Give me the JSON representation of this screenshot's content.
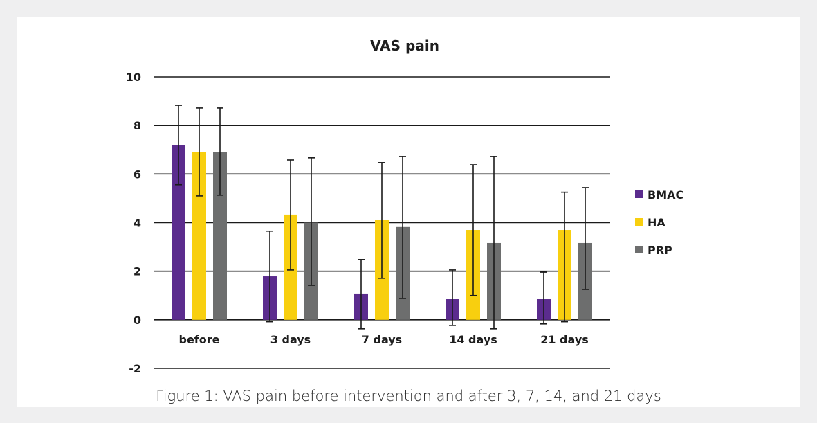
{
  "chart_data": {
    "type": "bar",
    "title": "VAS pain",
    "xlabel": "",
    "ylabel": "",
    "ylim": [
      -2,
      10
    ],
    "yticks": [
      -2,
      0,
      2,
      4,
      6,
      8,
      10
    ],
    "grid": true,
    "legend_position": "right",
    "categories": [
      "before",
      "3 days",
      "7 days",
      "14 days",
      "21 days"
    ],
    "series": [
      {
        "name": "BMAC",
        "color": "#5b2c8e",
        "values": [
          7.18,
          1.79,
          1.08,
          0.85,
          0.85
        ],
        "error_upper": [
          8.83,
          3.65,
          2.48,
          2.05,
          1.96
        ],
        "error_lower": [
          5.56,
          -0.08,
          -0.37,
          -0.23,
          -0.17
        ]
      },
      {
        "name": "HA",
        "color": "#f8cf0f",
        "values": [
          6.9,
          4.33,
          4.1,
          3.7,
          3.7
        ],
        "error_upper": [
          8.72,
          6.58,
          6.47,
          6.38,
          5.25
        ],
        "error_lower": [
          5.1,
          2.05,
          1.71,
          1.0,
          -0.08
        ]
      },
      {
        "name": "PRP",
        "color": "#6d6e6e",
        "values": [
          6.92,
          4.0,
          3.82,
          3.16,
          3.16
        ],
        "error_upper": [
          8.72,
          6.67,
          6.72,
          6.72,
          5.44
        ],
        "error_lower": [
          5.13,
          1.42,
          0.88,
          -0.37,
          1.25
        ]
      }
    ]
  },
  "caption": "Figure 1: VAS pain before intervention and after 3, 7, 14, and 21 days"
}
